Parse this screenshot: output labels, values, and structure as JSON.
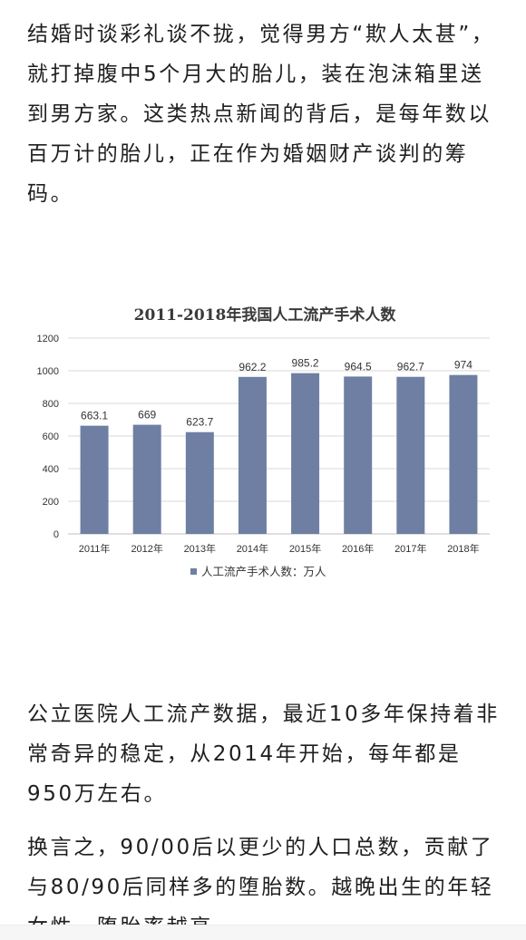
{
  "article": {
    "paragraph_1": "结婚时谈彩礼谈不拢，觉得男方“欺人太甚”，就打掉腹中5个月大的胎儿，装在泡沫箱里送到男方家。这类热点新闻的背后，是每年数以百万计的胎儿，正在作为婚姻财产谈判的筹码。",
    "paragraph_2": "公立医院人工流产数据，最近10多年保持着非常奇异的稳定，从2014年开始，每年都是950万左右。",
    "paragraph_3": "换言之，90/00后以更少的人口总数，贡献了与80/90后同样多的堕胎数。越晚出生的年轻女性，堕胎率越高。"
  },
  "chart_data": {
    "type": "bar",
    "title": "2011-2018年我国人工流产手术人数",
    "categories": [
      "2011年",
      "2012年",
      "2013年",
      "2014年",
      "2015年",
      "2016年",
      "2017年",
      "2018年"
    ],
    "series": [
      {
        "name": "人工流产手术人数：万人",
        "values": [
          663.1,
          669,
          623.7,
          962.2,
          985.2,
          964.5,
          962.7,
          974
        ],
        "labels": [
          "663.1",
          "669",
          "623.7",
          "962.2",
          "985.2",
          "964.5",
          "962.7",
          "974"
        ],
        "color": "#6f7fa3"
      }
    ],
    "ylim": [
      0,
      1200
    ],
    "yticks": [
      0,
      200,
      400,
      600,
      800,
      1000,
      1200
    ],
    "xlabel": "",
    "ylabel": "",
    "grid": true,
    "legend": "bottom"
  }
}
